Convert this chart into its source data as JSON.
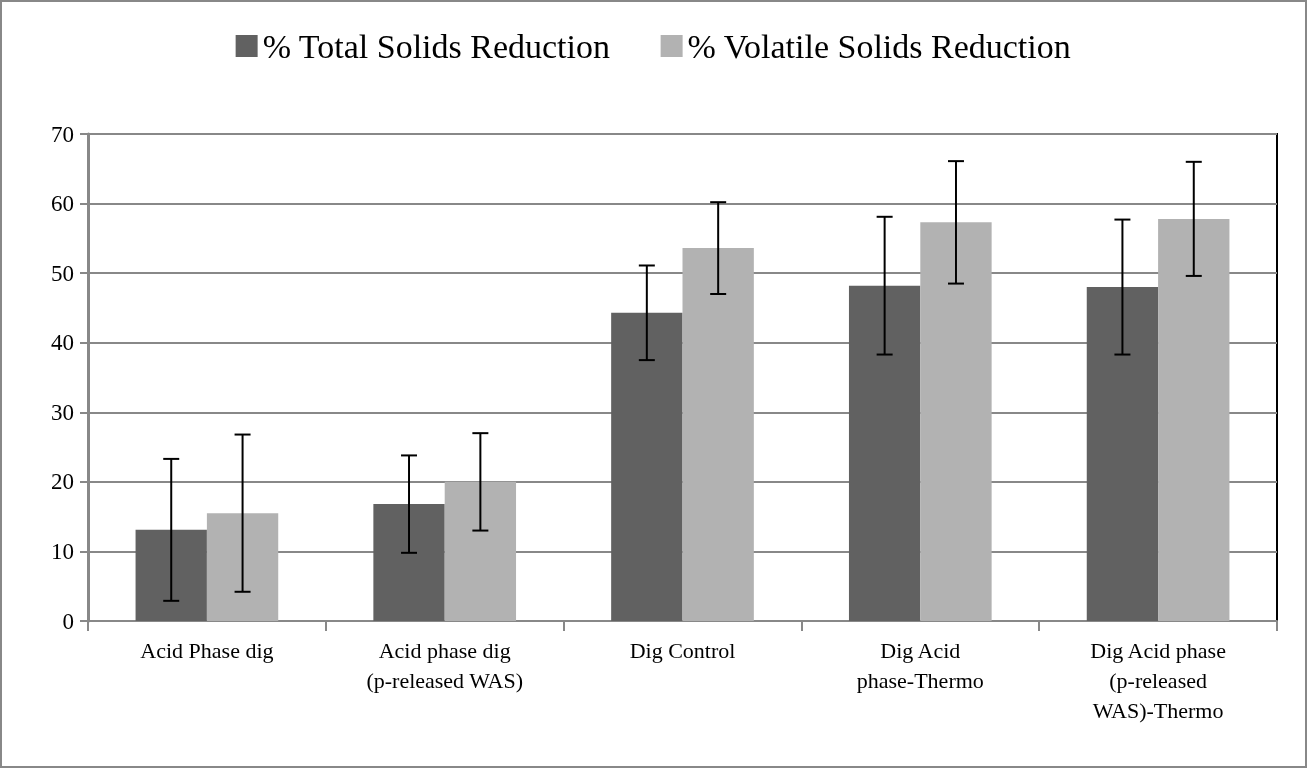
{
  "chart_data": {
    "type": "bar",
    "categories": [
      "Acid Phase dig",
      "Acid phase dig (p-released WAS)",
      "Dig Control",
      "Dig Acid phase-Thermo",
      "Dig Acid phase (p-released WAS)-Thermo"
    ],
    "series": [
      {
        "name": "% Total Solids Reduction",
        "color": "#616161",
        "values": [
          13.1,
          16.8,
          44.3,
          48.2,
          48.0
        ],
        "errors": [
          10.2,
          7.0,
          6.8,
          9.9,
          9.7
        ]
      },
      {
        "name": "% Volatile Solids Reduction",
        "color": "#b2b2b2",
        "values": [
          15.5,
          20.0,
          53.6,
          57.3,
          57.8
        ],
        "errors": [
          11.3,
          7.0,
          6.6,
          8.8,
          8.2
        ]
      }
    ],
    "ylim": [
      0,
      70
    ],
    "yticks": [
      0,
      10,
      20,
      30,
      40,
      50,
      60,
      70
    ],
    "grid": "y",
    "legend": "top"
  }
}
